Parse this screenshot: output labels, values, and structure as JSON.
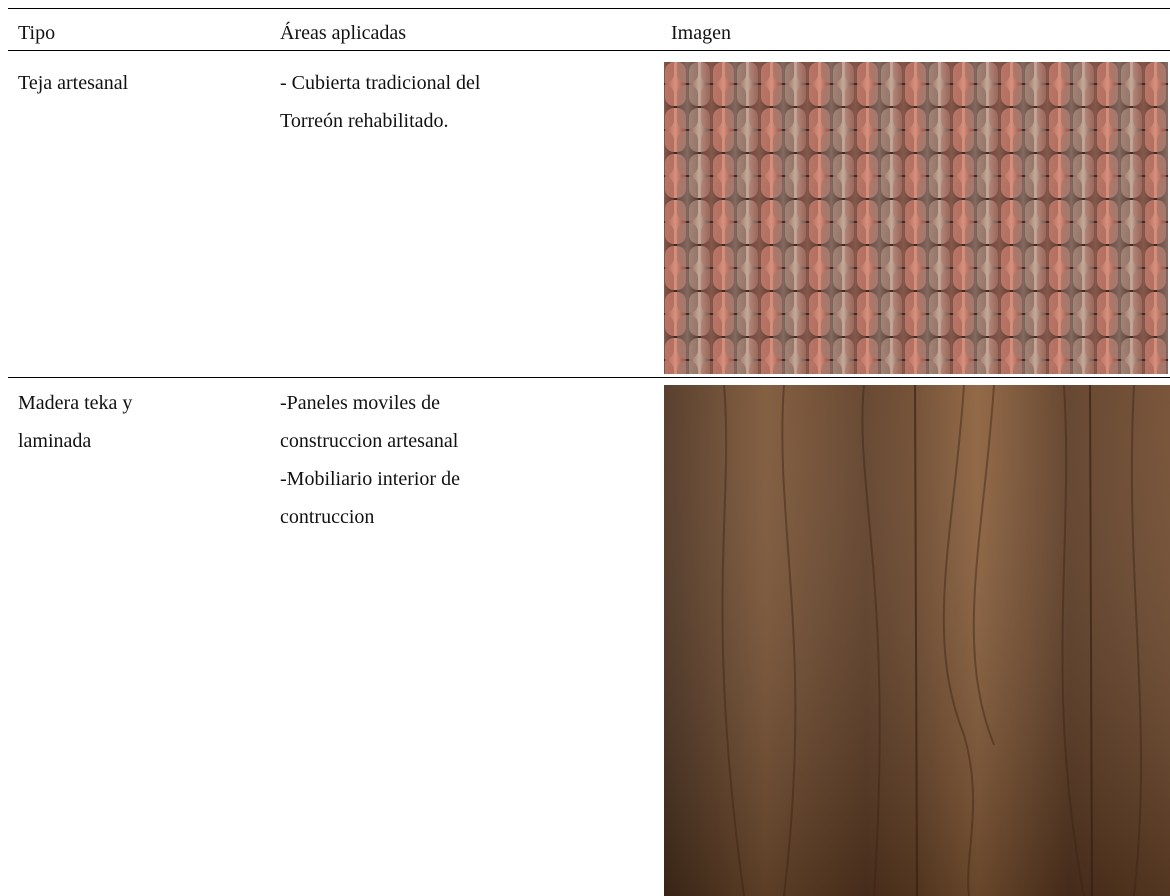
{
  "table": {
    "header": [
      "Tipo",
      "Áreas aplicadas",
      "Imagen"
    ],
    "rows": [
      {
        "tipo": [
          "Teja artesanal"
        ],
        "areas": [
          "- Cubierta tradicional del",
          "Torreón rehabilitado."
        ]
      },
      {
        "tipo": [
          "Madera teka y",
          "laminada"
        ],
        "areas": [
          "-Paneles moviles de",
          "construccion artesanal",
          "-Mobiliario interior de",
          "contruccion"
        ]
      }
    ]
  }
}
